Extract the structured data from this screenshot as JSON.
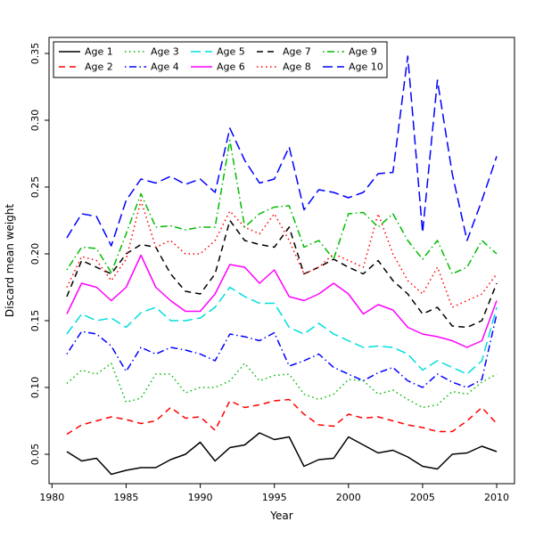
{
  "chart_data": {
    "type": "line",
    "title": "",
    "xlabel": "Year",
    "ylabel": "Discard mean weight",
    "grid": false,
    "legend_position": "top-left",
    "xlim": [
      1979.8,
      2011.2
    ],
    "ylim": [
      0.028,
      0.362
    ],
    "x_ticks": [
      1980,
      1985,
      1990,
      1995,
      2000,
      2005,
      2010
    ],
    "y_ticks": [
      0.05,
      0.1,
      0.15,
      0.2,
      0.25,
      0.3,
      0.35
    ],
    "x": [
      1981,
      1982,
      1983,
      1984,
      1985,
      1986,
      1987,
      1988,
      1989,
      1990,
      1991,
      1992,
      1993,
      1994,
      1995,
      1996,
      1997,
      1998,
      1999,
      2000,
      2001,
      2002,
      2003,
      2004,
      2005,
      2006,
      2007,
      2008,
      2009,
      2010
    ],
    "series": [
      {
        "name": "Age 1",
        "color": "#000000",
        "dash": "solid",
        "values": [
          0.052,
          0.045,
          0.047,
          0.035,
          0.038,
          0.04,
          0.04,
          0.046,
          0.05,
          0.059,
          0.045,
          0.055,
          0.057,
          0.066,
          0.061,
          0.063,
          0.041,
          0.046,
          0.047,
          0.063,
          0.057,
          0.051,
          0.053,
          0.048,
          0.041,
          0.039,
          0.05,
          0.051,
          0.056,
          0.052
        ]
      },
      {
        "name": "Age 2",
        "color": "#FF0000",
        "dash": "dashed",
        "values": [
          0.065,
          0.072,
          0.075,
          0.078,
          0.076,
          0.073,
          0.075,
          0.085,
          0.077,
          0.078,
          0.068,
          0.09,
          0.085,
          0.087,
          0.09,
          0.091,
          0.08,
          0.072,
          0.071,
          0.08,
          0.077,
          0.078,
          0.075,
          0.072,
          0.07,
          0.067,
          0.067,
          0.075,
          0.085,
          0.073
        ]
      },
      {
        "name": "Age 3",
        "color": "#00BB00",
        "dash": "dotted",
        "values": [
          0.103,
          0.113,
          0.11,
          0.118,
          0.089,
          0.092,
          0.11,
          0.11,
          0.096,
          0.1,
          0.1,
          0.105,
          0.118,
          0.105,
          0.109,
          0.11,
          0.095,
          0.091,
          0.095,
          0.106,
          0.105,
          0.095,
          0.098,
          0.091,
          0.085,
          0.087,
          0.097,
          0.095,
          0.104,
          0.11
        ]
      },
      {
        "name": "Age 4",
        "color": "#0000FF",
        "dash": "dotdash",
        "values": [
          0.125,
          0.142,
          0.14,
          0.131,
          0.112,
          0.13,
          0.125,
          0.13,
          0.128,
          0.125,
          0.12,
          0.14,
          0.138,
          0.135,
          0.141,
          0.116,
          0.12,
          0.125,
          0.115,
          0.11,
          0.105,
          0.111,
          0.115,
          0.105,
          0.1,
          0.11,
          0.104,
          0.1,
          0.106,
          0.155
        ]
      },
      {
        "name": "Age 5",
        "color": "#00DDDD",
        "dash": "longdash",
        "values": [
          0.14,
          0.155,
          0.15,
          0.152,
          0.145,
          0.156,
          0.16,
          0.15,
          0.15,
          0.152,
          0.16,
          0.175,
          0.168,
          0.163,
          0.163,
          0.145,
          0.14,
          0.148,
          0.14,
          0.135,
          0.13,
          0.131,
          0.13,
          0.125,
          0.113,
          0.12,
          0.115,
          0.11,
          0.12,
          0.16
        ]
      },
      {
        "name": "Age 6",
        "color": "#FF00FF",
        "dash": "solid",
        "values": [
          0.155,
          0.178,
          0.175,
          0.165,
          0.175,
          0.199,
          0.175,
          0.165,
          0.157,
          0.157,
          0.17,
          0.192,
          0.19,
          0.178,
          0.188,
          0.168,
          0.165,
          0.17,
          0.178,
          0.17,
          0.155,
          0.162,
          0.158,
          0.145,
          0.14,
          0.138,
          0.135,
          0.13,
          0.135,
          0.165
        ]
      },
      {
        "name": "Age 7",
        "color": "#000000",
        "dash": "dashed",
        "values": [
          0.168,
          0.195,
          0.19,
          0.185,
          0.2,
          0.207,
          0.205,
          0.185,
          0.172,
          0.17,
          0.185,
          0.225,
          0.21,
          0.207,
          0.205,
          0.22,
          0.185,
          0.19,
          0.196,
          0.19,
          0.185,
          0.195,
          0.18,
          0.17,
          0.155,
          0.16,
          0.146,
          0.145,
          0.15,
          0.178
        ]
      },
      {
        "name": "Age 8",
        "color": "#FF0000",
        "dash": "dotted",
        "values": [
          0.175,
          0.198,
          0.195,
          0.18,
          0.196,
          0.24,
          0.205,
          0.21,
          0.2,
          0.2,
          0.21,
          0.232,
          0.22,
          0.215,
          0.23,
          0.21,
          0.185,
          0.19,
          0.2,
          0.195,
          0.19,
          0.23,
          0.2,
          0.18,
          0.17,
          0.19,
          0.16,
          0.165,
          0.17,
          0.185
        ]
      },
      {
        "name": "Age 9",
        "color": "#00BB00",
        "dash": "dotdash",
        "values": [
          0.188,
          0.205,
          0.204,
          0.186,
          0.215,
          0.245,
          0.22,
          0.221,
          0.218,
          0.22,
          0.22,
          0.285,
          0.22,
          0.23,
          0.235,
          0.236,
          0.205,
          0.21,
          0.196,
          0.23,
          0.231,
          0.22,
          0.23,
          0.21,
          0.196,
          0.21,
          0.185,
          0.19,
          0.21,
          0.2
        ]
      },
      {
        "name": "Age 10",
        "color": "#0000FF",
        "dash": "longdash",
        "values": [
          0.212,
          0.23,
          0.228,
          0.206,
          0.24,
          0.256,
          0.253,
          0.258,
          0.252,
          0.256,
          0.246,
          0.294,
          0.27,
          0.253,
          0.256,
          0.28,
          0.233,
          0.248,
          0.246,
          0.242,
          0.246,
          0.26,
          0.261,
          0.348,
          0.216,
          0.33,
          0.26,
          0.21,
          0.24,
          0.273
        ]
      }
    ]
  }
}
